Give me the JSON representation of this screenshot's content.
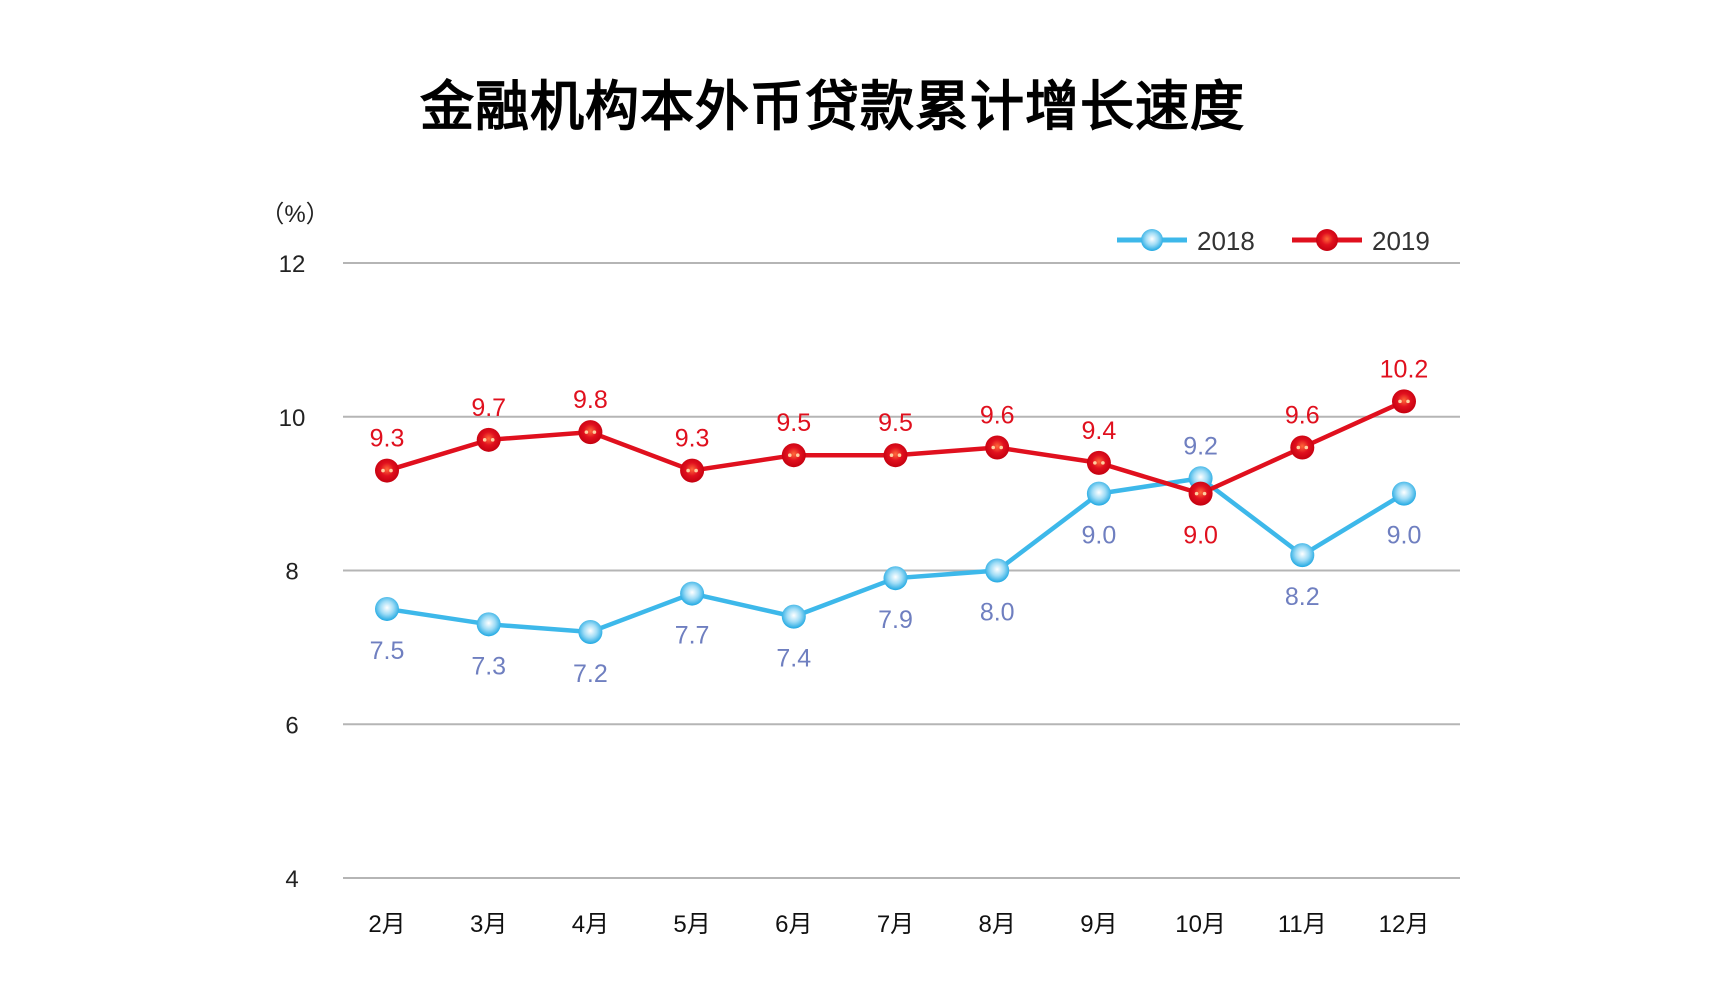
{
  "chart_data": {
    "type": "line",
    "title": "金融机构本外币贷款累计增长速度",
    "ylabel": "（%）",
    "ylim": [
      4,
      12
    ],
    "yticks": [
      4,
      6,
      8,
      10,
      12
    ],
    "grid": true,
    "legend_position": "top-right",
    "categories": [
      "2月",
      "3月",
      "4月",
      "5月",
      "6月",
      "7月",
      "8月",
      "9月",
      "10月",
      "11月",
      "12月"
    ],
    "series": [
      {
        "name": "2018",
        "color": "#3db8ea",
        "label_color": "#6f7fc0",
        "values": [
          7.5,
          7.3,
          7.2,
          7.7,
          7.4,
          7.9,
          8.0,
          9.0,
          9.2,
          8.2,
          9.0
        ]
      },
      {
        "name": "2019",
        "color": "#e0101e",
        "label_color": "#e0101e",
        "values": [
          9.3,
          9.7,
          9.8,
          9.3,
          9.5,
          9.5,
          9.6,
          9.4,
          9.0,
          9.6,
          10.2
        ]
      }
    ]
  }
}
